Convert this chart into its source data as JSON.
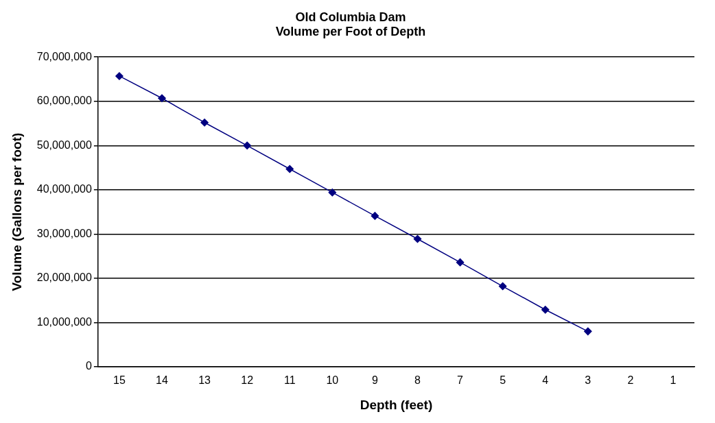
{
  "chart_data": {
    "type": "line",
    "title": [
      "Old Columbia Dam",
      "Volume per Foot of Depth"
    ],
    "xlabel": "Depth (feet)",
    "ylabel": "Volume (Gallons per foot)",
    "categories": [
      "15",
      "14",
      "13",
      "12",
      "11",
      "10",
      "9",
      "8",
      "7",
      "5",
      "4",
      "3",
      "2",
      "1"
    ],
    "series": [
      {
        "color": "#000080",
        "values": [
          65700000,
          60700000,
          55200000,
          50000000,
          44700000,
          39400000,
          34100000,
          28900000,
          23600000,
          18200000,
          12900000,
          8000000,
          null,
          null
        ]
      }
    ],
    "ylim": [
      0,
      70000000
    ],
    "yticks": [
      0,
      {
        "value": 10000000,
        "label": "10,000,000"
      },
      {
        "value": 20000000,
        "label": "20,000,000"
      },
      {
        "value": 30000000,
        "label": "30,000,000"
      },
      {
        "value": 40000000,
        "label": "40,000,000"
      },
      {
        "value": 50000000,
        "label": "50,000,000"
      },
      {
        "value": 60000000,
        "label": "60,000,000"
      },
      {
        "value": 70000000,
        "label": "70,000,000"
      }
    ],
    "grid": "y",
    "legend": false,
    "marker": "diamond",
    "line_style": "solid"
  }
}
